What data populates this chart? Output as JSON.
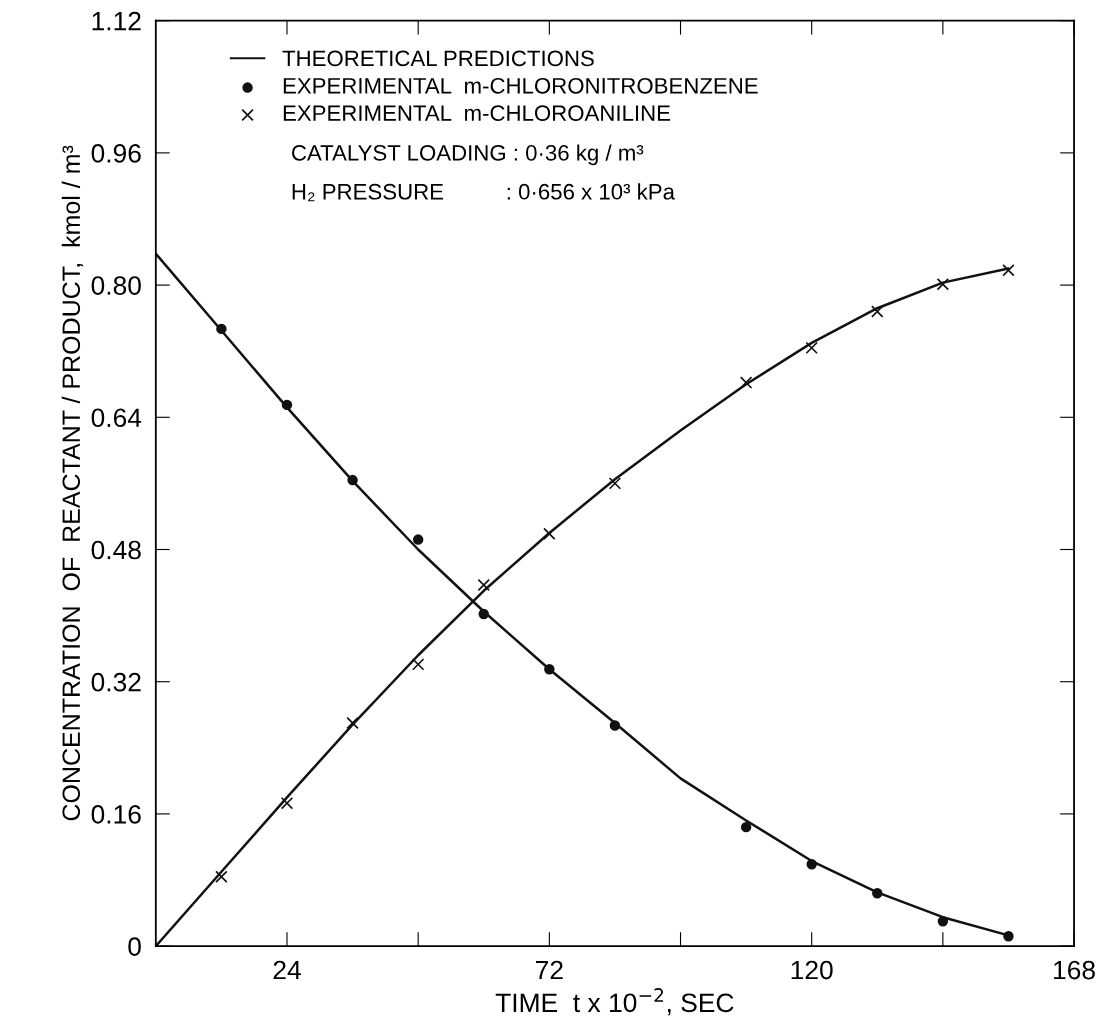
{
  "chart_data": {
    "type": "line",
    "xlabel": "TIME  t x 10$^{−2}$, SEC",
    "ylabel": "CONCENTRATION  OF  REACTANT / PRODUCT,  kmol / m³",
    "xlim": [
      0,
      168
    ],
    "ylim": [
      0,
      1.12
    ],
    "xticks": [
      24,
      {
        "value": 48,
        "label": null
      },
      72,
      {
        "value": 96,
        "label": null
      },
      120,
      {
        "value": 144,
        "label": null
      },
      168
    ],
    "yticks": [
      0,
      {
        "value": 0.16,
        "label": "0.16"
      },
      {
        "value": 0.32,
        "label": "0.32"
      },
      {
        "value": 0.48,
        "label": "0.48"
      },
      {
        "value": 0.64,
        "label": "0.64"
      },
      {
        "value": 0.8,
        "label": "0.80"
      },
      {
        "value": 0.96,
        "label": "0.96"
      },
      {
        "value": 1.12,
        "label": "1.12"
      }
    ],
    "grid": false,
    "legend": "top left",
    "series": [
      {
        "name": "THEORETICAL PREDICTIONS",
        "color": "#111111",
        "marker": "none",
        "line_style": "solid",
        "x": [
          0,
          12,
          24,
          36,
          48,
          60,
          72,
          84,
          96,
          108,
          120,
          132,
          144,
          156
        ],
        "values": [
          0.838,
          0.745,
          0.652,
          0.563,
          0.48,
          0.405,
          0.335,
          0.27,
          0.203,
          0.152,
          0.103,
          0.065,
          0.035,
          0.013
        ]
      },
      {
        "name": "EXPERIMENTAL  m-CHLORONITROBENZENE",
        "type": "scatter",
        "color": "#111111",
        "marker": "circle",
        "x": [
          12,
          24,
          36,
          48,
          60,
          72,
          84,
          108,
          120,
          132,
          144,
          156
        ],
        "values": [
          0.747,
          0.655,
          0.564,
          0.492,
          0.402,
          0.335,
          0.267,
          0.144,
          0.099,
          0.064,
          0.03,
          0.012
        ]
      },
      {
        "name": "EXPERIMENTAL  m-CHLOROANILINE",
        "type": "scatter",
        "color": "#111111",
        "marker": "cross",
        "x": [
          12,
          24,
          36,
          48,
          60,
          72,
          84,
          108,
          120,
          132,
          144,
          156
        ],
        "values": [
          0.084,
          0.173,
          0.27,
          0.341,
          0.437,
          0.499,
          0.56,
          0.682,
          0.724,
          0.768,
          0.801,
          0.818
        ]
      },
      {
        "color": "#111111",
        "marker": "none",
        "line_style": "solid",
        "x": [
          0,
          12,
          24,
          36,
          48,
          60,
          72,
          84,
          96,
          108,
          120,
          132,
          144,
          156
        ],
        "values": [
          0,
          0.09,
          0.18,
          0.268,
          0.352,
          0.43,
          0.5,
          0.565,
          0.624,
          0.68,
          0.73,
          0.772,
          0.803,
          0.82
        ]
      }
    ],
    "annotations": [
      "CATALYST LOADING : 0·36 kg / m³",
      "H₂ PRESSURE          : 0·656 x 10³ kPa"
    ]
  }
}
